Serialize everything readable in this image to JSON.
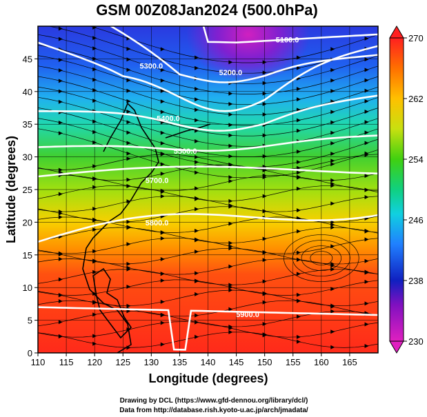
{
  "title": "GSM 00Z08Jan2024 (500.0hPa)",
  "x_axis_title": "Longitude (degrees)",
  "y_axis_title": "Latitude (degrees)",
  "credit_line1": "Drawing by DCL (https://www.gfd-dennou.org/library/dcl/)",
  "credit_line2": "Data from http://database.rish.kyoto-u.ac.jp/arch/jmadata/",
  "chart_data": {
    "type": "heatmap",
    "variable": "temperature (K) at 500hPa with geopotential height contours and wind streamlines",
    "xlim": [
      110,
      170
    ],
    "ylim": [
      0,
      50
    ],
    "x_ticks": [
      "110",
      "115",
      "120",
      "125",
      "130",
      "135",
      "140",
      "145",
      "150",
      "155",
      "160",
      "165"
    ],
    "y_ticks": [
      "0",
      "5",
      "10",
      "15",
      "20",
      "25",
      "30",
      "35",
      "40",
      "45"
    ],
    "colorbar": {
      "min": 230,
      "max": 270,
      "tick_labels": [
        "270",
        "262",
        "254",
        "246",
        "238",
        "230"
      ],
      "tick_values": [
        270,
        262,
        254,
        246,
        238,
        230
      ]
    },
    "contours": [
      {
        "label": "5100.0",
        "label_lon": 154,
        "label_lat": 47.5
      },
      {
        "label": "5200.0",
        "label_lon": 144,
        "label_lat": 42.5
      },
      {
        "label": "5300.0",
        "label_lon": 130,
        "label_lat": 43.5
      },
      {
        "label": "5400.0",
        "label_lon": 133,
        "label_lat": 35.5
      },
      {
        "label": "5500.0",
        "label_lon": 136,
        "label_lat": 30.5
      },
      {
        "label": "5700.0",
        "label_lon": 131,
        "label_lat": 26.0
      },
      {
        "label": "5800.0",
        "label_lon": 131,
        "label_lat": 19.5
      },
      {
        "label": "5900.0",
        "label_lon": 147,
        "label_lat": 5.5
      }
    ]
  }
}
